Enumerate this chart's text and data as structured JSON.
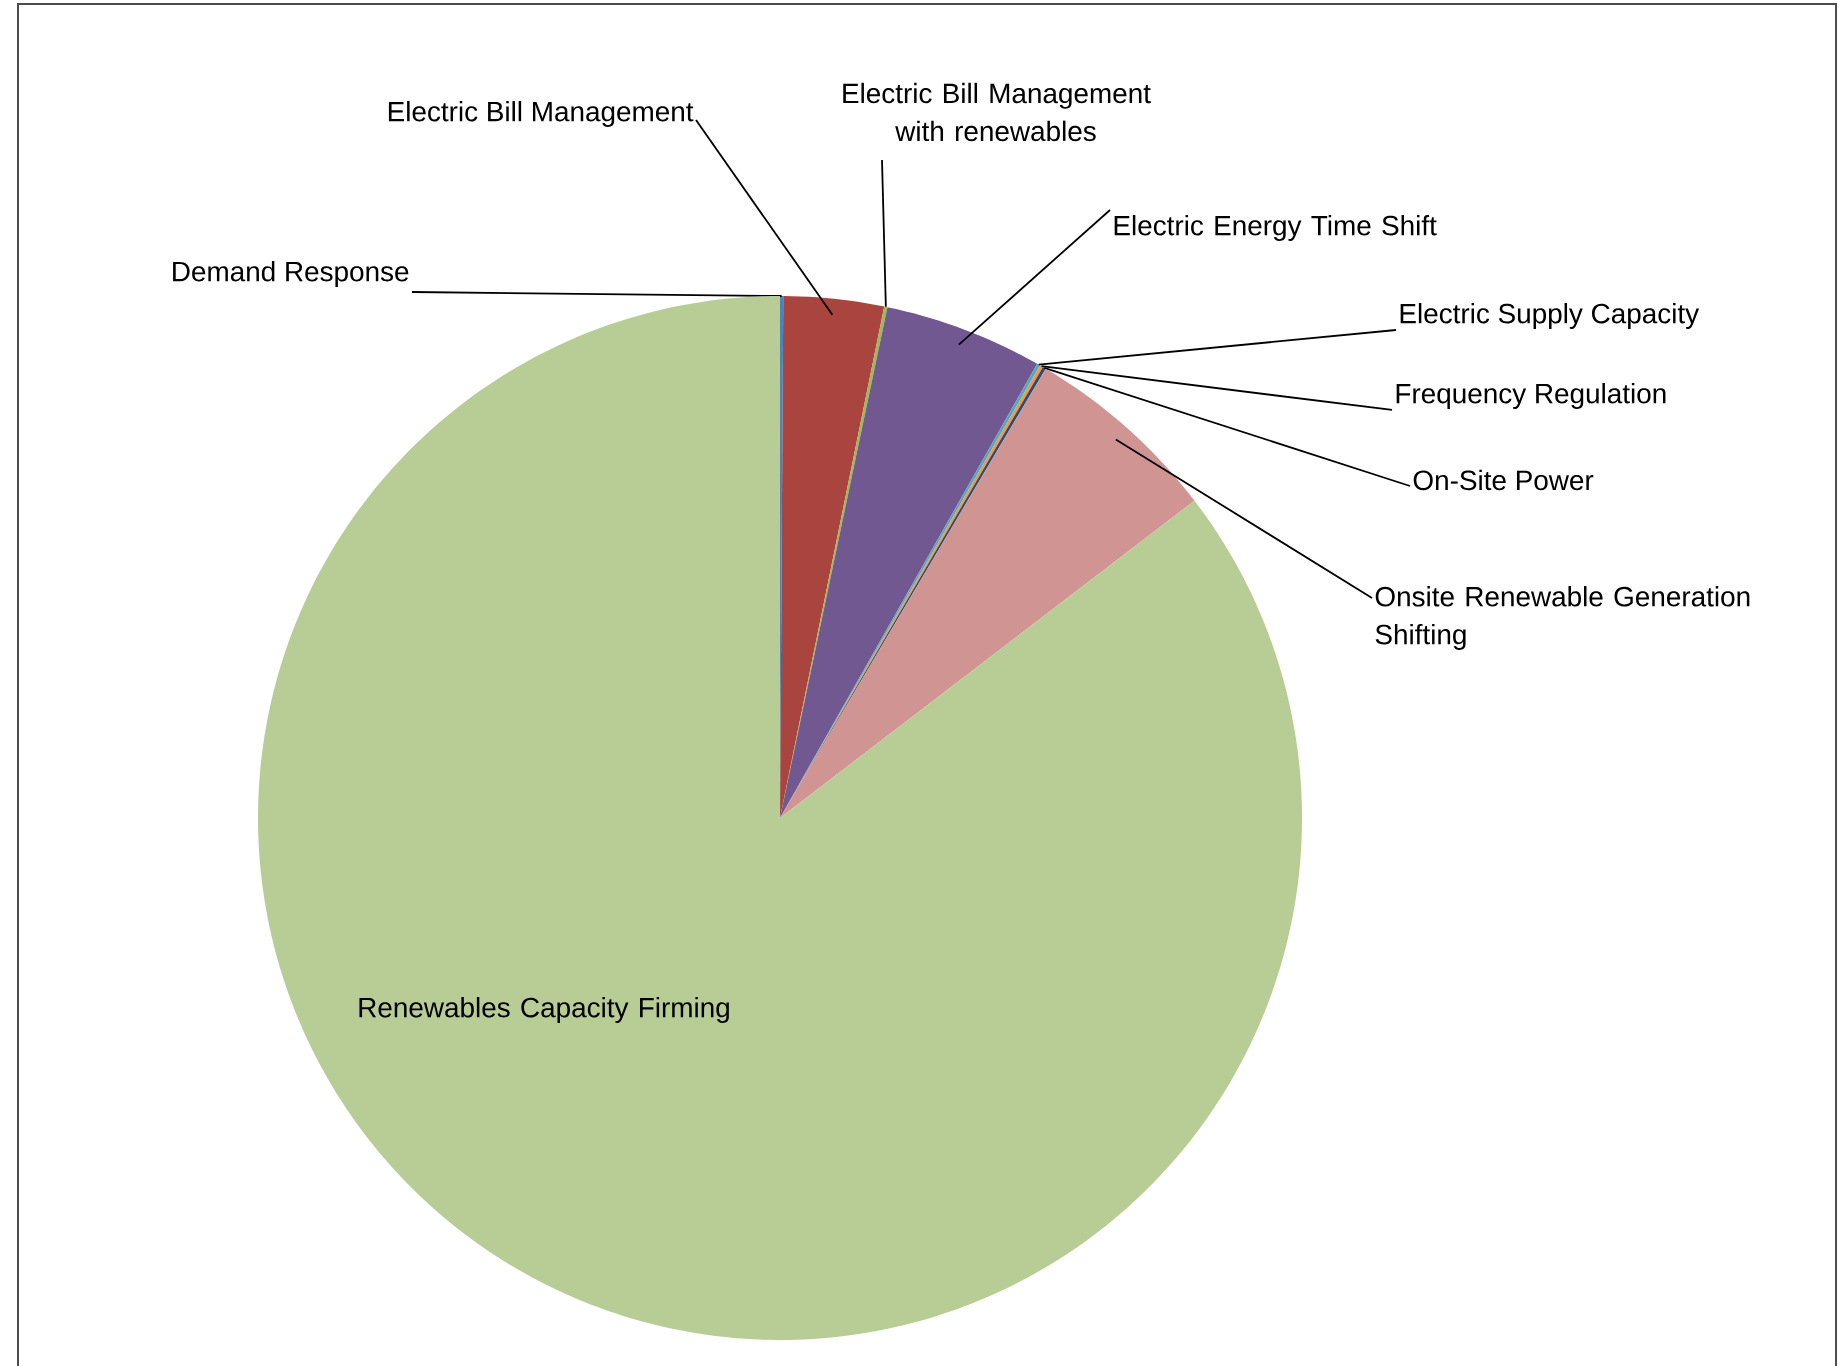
{
  "chart_data": {
    "type": "pie",
    "categories": [
      "Demand Response",
      "Electric Bill Management",
      "Electric Bill Management with renewables",
      "Electric Energy Time Shift",
      "Electric Supply Capacity",
      "Frequency Regulation",
      "On-Site Power",
      "Onsite Renewable Generation Shifting",
      "Renewables Capacity Firming"
    ],
    "values": [
      0.1,
      3.1,
      0.1,
      4.9,
      0.1,
      0.1,
      0.1,
      6.1,
      85.4
    ],
    "colors": [
      "#4f81bd",
      "#a9443f",
      "#9bbb59",
      "#725891",
      "#4bacc6",
      "#f79646",
      "#2c4d75",
      "#d09593",
      "#b8cd96"
    ]
  }
}
